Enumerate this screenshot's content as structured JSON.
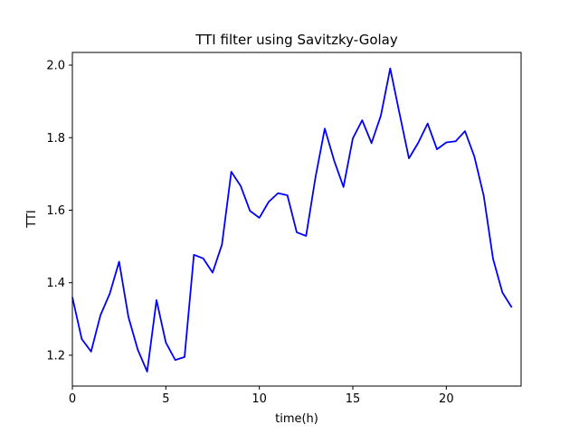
{
  "chart_data": {
    "type": "line",
    "title": "TTI filter using Savitzky-Golay",
    "xlabel": "time(h)",
    "ylabel": "TTI",
    "xlim": [
      0,
      24
    ],
    "ylim": [
      1.115,
      2.035
    ],
    "xticks": [
      0,
      5,
      10,
      15,
      20
    ],
    "yticks": [
      1.2,
      1.4,
      1.6,
      1.8,
      2.0
    ],
    "xtick_labels": [
      "0",
      "5",
      "10",
      "15",
      "20"
    ],
    "ytick_labels": [
      "1.2",
      "1.4",
      "1.6",
      "1.8",
      "2.0"
    ],
    "grid": false,
    "series": [
      {
        "color": "#0000ff",
        "x": [
          0,
          0.5,
          1,
          1.5,
          2,
          2.5,
          3,
          3.5,
          4,
          4.5,
          5,
          5.5,
          6,
          6.5,
          7,
          7.5,
          8,
          8.5,
          9,
          9.5,
          10,
          10.5,
          11,
          11.5,
          12,
          12.5,
          13,
          13.5,
          14,
          14.5,
          15,
          15.5,
          16,
          16.5,
          17,
          17.5,
          18,
          18.5,
          19,
          19.5,
          20,
          20.5,
          21,
          21.5,
          22,
          22.5,
          23,
          23.5
        ],
        "y": [
          1.36,
          1.245,
          1.21,
          1.31,
          1.37,
          1.458,
          1.305,
          1.215,
          1.155,
          1.352,
          1.235,
          1.187,
          1.195,
          1.477,
          1.467,
          1.428,
          1.505,
          1.706,
          1.667,
          1.598,
          1.579,
          1.623,
          1.647,
          1.641,
          1.539,
          1.529,
          1.69,
          1.825,
          1.737,
          1.664,
          1.798,
          1.848,
          1.785,
          1.861,
          1.991,
          1.866,
          1.743,
          1.786,
          1.839,
          1.768,
          1.787,
          1.79,
          1.818,
          1.748,
          1.64,
          1.466,
          1.373,
          1.332
        ]
      }
    ]
  }
}
